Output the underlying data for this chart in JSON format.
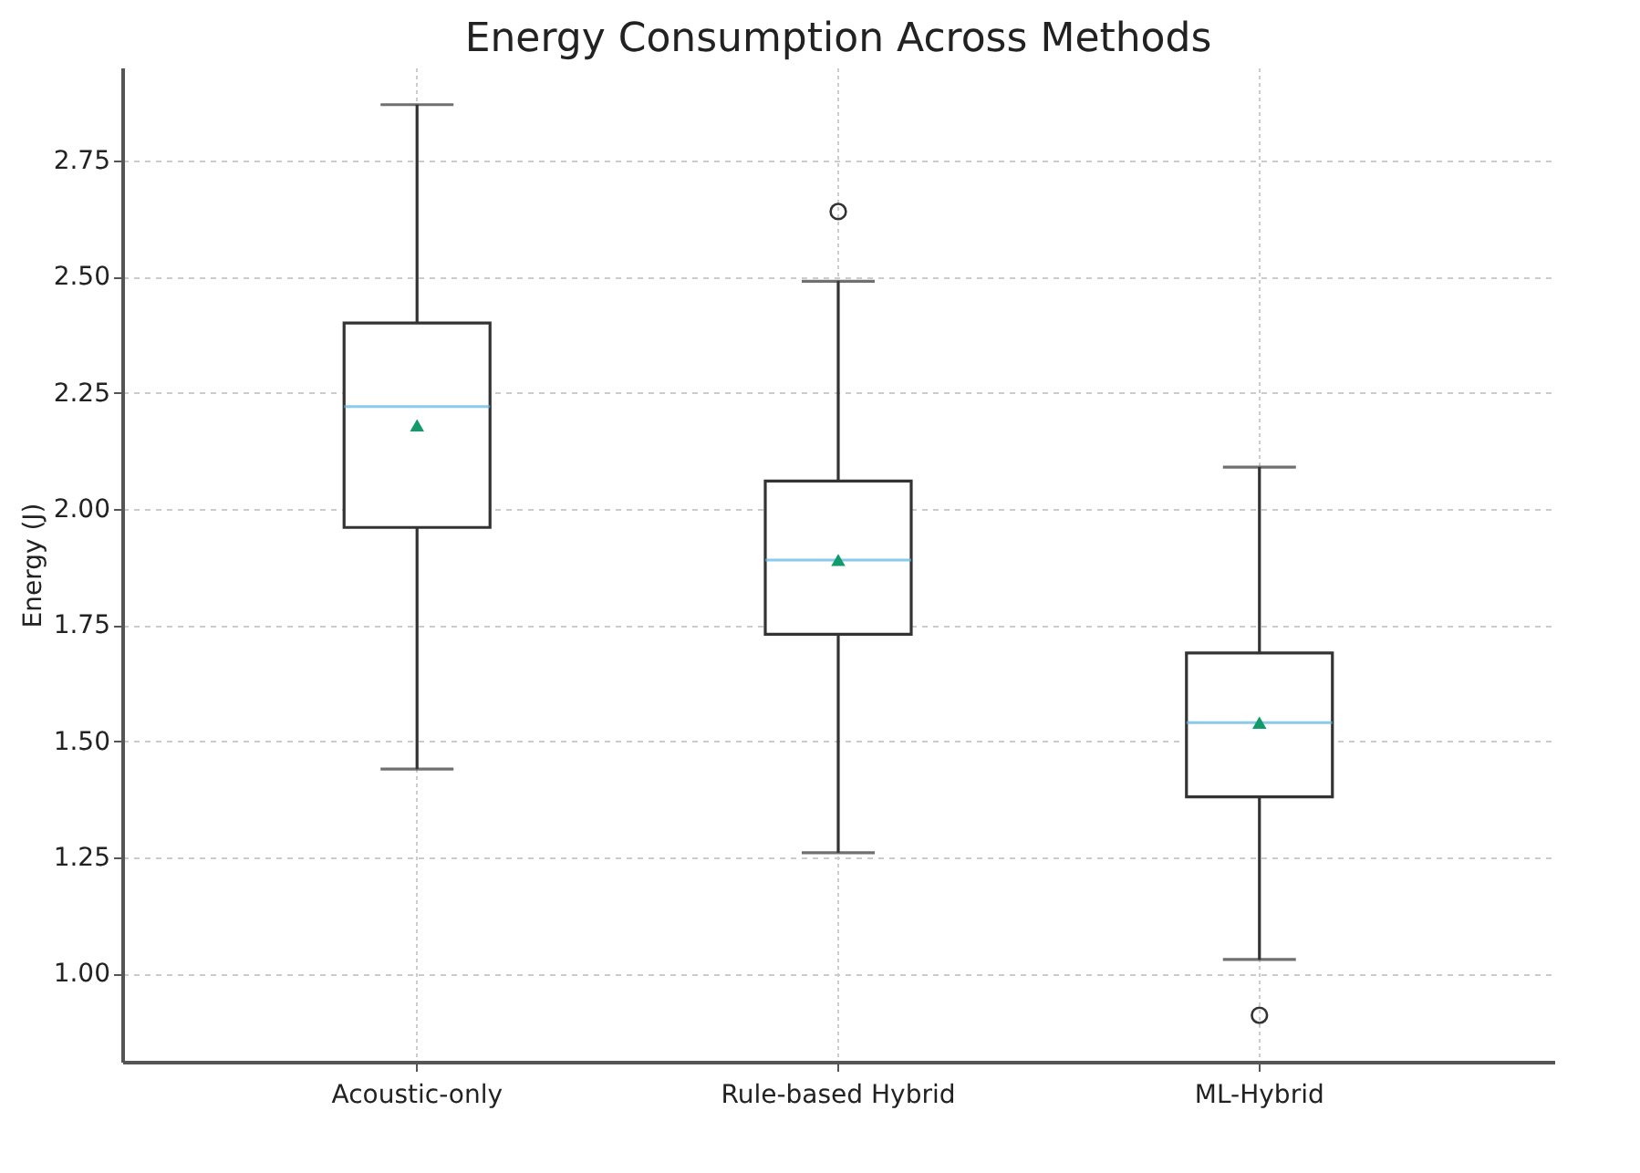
{
  "chart_data": {
    "type": "box",
    "title": "Energy Consumption Across Methods",
    "ylabel": "Energy (J)",
    "categories": [
      "Acoustic-only",
      "Rule-based Hybrid",
      "ML-Hybrid"
    ],
    "series": [
      {
        "color": "#333333",
        "boxes": [
          {
            "low": 1.44,
            "q1": 1.96,
            "median": 2.22,
            "q3": 2.4,
            "high": 2.87,
            "mean": 2.18
          },
          {
            "low": 1.26,
            "q1": 1.73,
            "median": 1.89,
            "q3": 2.06,
            "high": 2.49,
            "mean": 1.89,
            "outliers": [
              2.64
            ]
          },
          {
            "low": 1.03,
            "q1": 1.38,
            "median": 1.54,
            "q3": 1.69,
            "high": 2.09,
            "mean": 1.54,
            "outliers": [
              0.91
            ]
          }
        ]
      }
    ],
    "ylim": [
      0.81,
      2.95
    ],
    "yticks": [
      {
        "value": 1,
        "label": "1.00"
      },
      {
        "value": 1.25,
        "label": "1.25"
      },
      {
        "value": 1.5,
        "label": "1.50"
      },
      {
        "value": 1.75,
        "label": "1.75"
      },
      {
        "value": 2,
        "label": "2.00"
      },
      {
        "value": 2.25,
        "label": "2.25"
      },
      {
        "value": 2.5,
        "label": "2.50"
      },
      {
        "value": 2.75,
        "label": "2.75"
      }
    ],
    "grid": true
  }
}
